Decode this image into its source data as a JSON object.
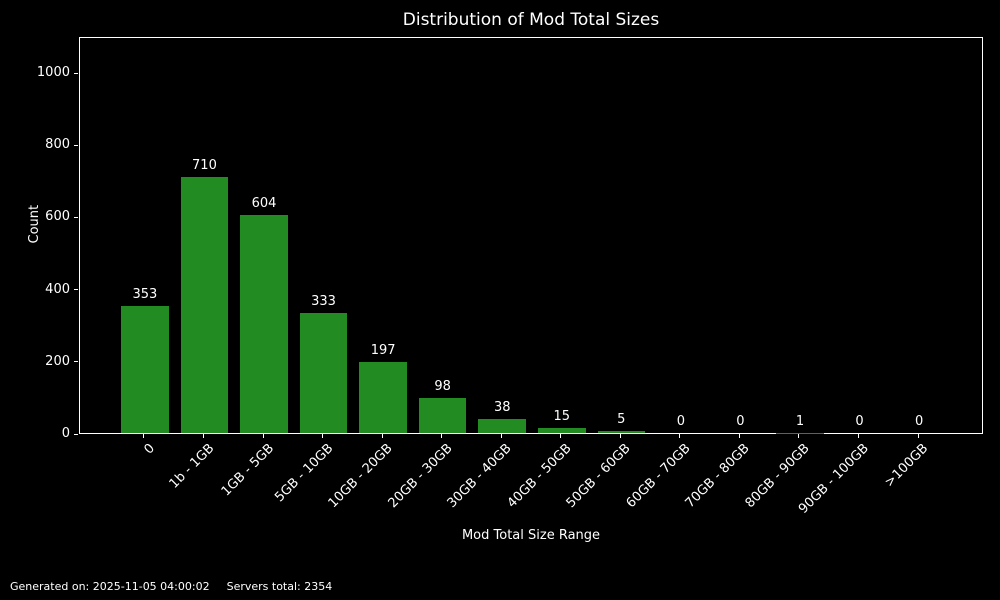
{
  "title": "Distribution of Mod Total Sizes",
  "footer": {
    "generated": "Generated on: 2025-11-05 04:00:02",
    "servers_total": "Servers total: 2354"
  },
  "colors": {
    "background": "#000000",
    "bar": "#228B22",
    "text": "#ffffff",
    "axis": "#ffffff"
  },
  "chart_data": {
    "type": "bar",
    "title": "Distribution of Mod Total Sizes",
    "xlabel": "Mod Total Size Range",
    "ylabel": "Count",
    "categories": [
      "0",
      "1b - 1GB",
      "1GB - 5GB",
      "5GB - 10GB",
      "10GB - 20GB",
      "20GB - 30GB",
      "30GB - 40GB",
      "40GB - 50GB",
      "50GB - 60GB",
      "60GB - 70GB",
      "70GB - 80GB",
      "80GB - 90GB",
      "90GB - 100GB",
      ">100GB"
    ],
    "values": [
      353,
      710,
      604,
      333,
      197,
      98,
      38,
      15,
      5,
      0,
      0,
      1,
      0,
      0
    ],
    "yticks": [
      0,
      200,
      400,
      600,
      800,
      1000
    ],
    "ylim": [
      0,
      1100
    ],
    "bar_color": "#228B22",
    "bar_width_fraction": 0.8,
    "grid": false,
    "legend": false,
    "value_labels": true,
    "xtick_rotation_deg": 45
  }
}
